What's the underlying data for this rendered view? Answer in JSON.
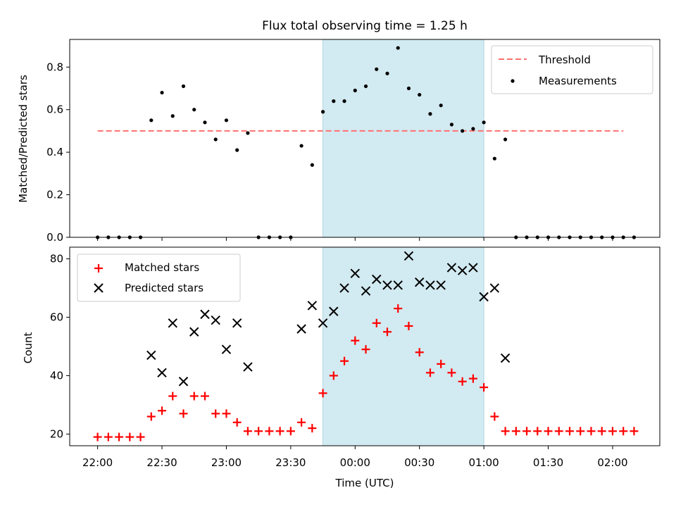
{
  "title": "Flux total observing time = 1.25 h",
  "xlabel": "Time (UTC)",
  "x_ticks": [
    "22:00",
    "22:30",
    "23:00",
    "23:30",
    "00:00",
    "00:30",
    "01:00",
    "01:30",
    "02:00"
  ],
  "colors": {
    "threshold": "#ff7070",
    "measurement": "#000000",
    "matched": "#ff0000",
    "predicted": "#000000",
    "window": "#add8e6"
  },
  "chart_data": [
    {
      "type": "scatter",
      "ylabel": "Matched/Predicted stars",
      "ylim": [
        0,
        0.93
      ],
      "y_ticks": [
        "0.0",
        "0.2",
        "0.4",
        "0.6",
        "0.8"
      ],
      "xlim": [
        "21:47",
        "02:22"
      ],
      "highlight_span": {
        "from": "23:45",
        "to": "01:00"
      },
      "legend": {
        "placement": "top-right",
        "entries": [
          "Threshold",
          "Measurements"
        ]
      },
      "threshold": {
        "name": "Threshold",
        "value": 0.5,
        "from": "22:00",
        "to": "02:05"
      },
      "series": [
        {
          "name": "Measurements",
          "x": [
            "22:00",
            "22:05",
            "22:10",
            "22:15",
            "22:20",
            "22:25",
            "22:30",
            "22:35",
            "22:40",
            "22:45",
            "22:50",
            "22:55",
            "23:00",
            "23:05",
            "23:10",
            "23:15",
            "23:20",
            "23:25",
            "23:30",
            "23:35",
            "23:40",
            "23:45",
            "23:50",
            "23:55",
            "00:00",
            "00:05",
            "00:10",
            "00:15",
            "00:20",
            "00:25",
            "00:30",
            "00:35",
            "00:40",
            "00:45",
            "00:50",
            "00:55",
            "01:00",
            "01:05",
            "01:10",
            "01:15",
            "01:20",
            "01:25",
            "01:30",
            "01:35",
            "01:40",
            "01:45",
            "01:50",
            "01:55",
            "02:00",
            "02:05",
            "02:10"
          ],
          "y": [
            0,
            0,
            0,
            0,
            0,
            0.55,
            0.68,
            0.57,
            0.71,
            0.6,
            0.54,
            0.46,
            0.55,
            0.41,
            0.49,
            0,
            0,
            0,
            0,
            0.43,
            0.34,
            0.59,
            0.64,
            0.64,
            0.69,
            0.71,
            0.79,
            0.77,
            0.89,
            0.7,
            0.67,
            0.58,
            0.62,
            0.53,
            0.5,
            0.51,
            0.54,
            0.37,
            0.46,
            0,
            0,
            0,
            0,
            0,
            0,
            0,
            0,
            0,
            0,
            0,
            0
          ]
        }
      ]
    },
    {
      "type": "scatter",
      "ylabel": "Count",
      "ylim": [
        16,
        84
      ],
      "y_ticks": [
        "20",
        "40",
        "60",
        "80"
      ],
      "xlim": [
        "21:47",
        "02:22"
      ],
      "highlight_span": {
        "from": "23:45",
        "to": "01:00"
      },
      "legend": {
        "placement": "top-left",
        "entries": [
          "Matched stars",
          "Predicted stars"
        ]
      },
      "series": [
        {
          "name": "Matched stars",
          "marker": "plus",
          "x": [
            "22:00",
            "22:05",
            "22:10",
            "22:15",
            "22:20",
            "22:25",
            "22:30",
            "22:35",
            "22:40",
            "22:45",
            "22:50",
            "22:55",
            "23:00",
            "23:05",
            "23:10",
            "23:15",
            "23:20",
            "23:25",
            "23:30",
            "23:35",
            "23:40",
            "23:45",
            "23:50",
            "23:55",
            "00:00",
            "00:05",
            "00:10",
            "00:15",
            "00:20",
            "00:25",
            "00:30",
            "00:35",
            "00:40",
            "00:45",
            "00:50",
            "00:55",
            "01:00",
            "01:05",
            "01:10",
            "01:15",
            "01:20",
            "01:25",
            "01:30",
            "01:35",
            "01:40",
            "01:45",
            "01:50",
            "01:55",
            "02:00",
            "02:05",
            "02:10"
          ],
          "y": [
            19,
            19,
            19,
            19,
            19,
            26,
            28,
            33,
            27,
            33,
            33,
            27,
            27,
            24,
            21,
            21,
            21,
            21,
            21,
            24,
            22,
            34,
            40,
            45,
            52,
            49,
            58,
            55,
            63,
            57,
            48,
            41,
            44,
            41,
            38,
            39,
            36,
            26,
            21,
            21,
            21,
            21,
            21,
            21,
            21,
            21,
            21,
            21,
            21,
            21,
            21
          ]
        },
        {
          "name": "Predicted stars",
          "marker": "x",
          "x": [
            "22:25",
            "22:30",
            "22:35",
            "22:40",
            "22:45",
            "22:50",
            "22:55",
            "23:00",
            "23:05",
            "23:10",
            "23:35",
            "23:40",
            "23:45",
            "23:50",
            "23:55",
            "00:00",
            "00:05",
            "00:10",
            "00:15",
            "00:20",
            "00:25",
            "00:30",
            "00:35",
            "00:40",
            "00:45",
            "00:50",
            "00:55",
            "01:00",
            "01:05",
            "01:10"
          ],
          "y": [
            47,
            41,
            58,
            38,
            55,
            61,
            59,
            49,
            58,
            43,
            56,
            64,
            58,
            62,
            70,
            75,
            69,
            73,
            71,
            71,
            81,
            72,
            71,
            71,
            77,
            76,
            77,
            67,
            70,
            46
          ]
        }
      ]
    }
  ]
}
